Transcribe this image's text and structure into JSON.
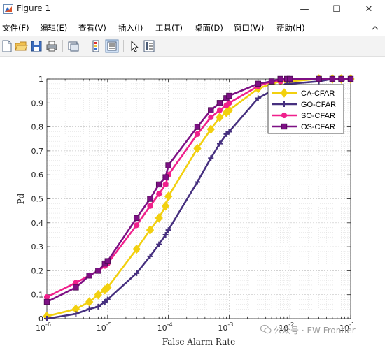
{
  "window": {
    "title": "Figure 1",
    "minimize_glyph": "—",
    "maximize_glyph": "☐",
    "close_glyph": "✕"
  },
  "menu": [
    "文件(F)",
    "编辑(E)",
    "查看(V)",
    "插入(I)",
    "工具(T)",
    "桌面(D)",
    "窗口(W)",
    "帮助(H)"
  ],
  "watermark": "公众号 · EW Frontier",
  "chart_data": {
    "type": "line",
    "xscale": "log",
    "xlim": [
      1e-06,
      0.1
    ],
    "ylim": [
      0,
      1
    ],
    "grid": true,
    "minor_grid": true,
    "xlabel": "False Alarm Rate",
    "ylabel": "Pd",
    "x_tick_labels": [
      "10^-6",
      "10^-5",
      "10^-4",
      "10^-3",
      "10^-2",
      "10^-1"
    ],
    "y_tick_labels": [
      "0",
      "0.1",
      "0.2",
      "0.3",
      "0.4",
      "0.5",
      "0.6",
      "0.7",
      "0.8",
      "0.9",
      "1"
    ],
    "legend_position": "top-right",
    "series": [
      {
        "name": "CA-CFAR",
        "color": "#f2d00f",
        "marker": "diamond",
        "x": [
          1e-06,
          3e-06,
          5e-06,
          7e-06,
          9e-06,
          1e-05,
          3e-05,
          5e-05,
          7e-05,
          9e-05,
          0.0001,
          0.0003,
          0.0005,
          0.0007,
          0.0009,
          0.001,
          0.003,
          0.005,
          0.007,
          0.009,
          0.01,
          0.03,
          0.05,
          0.07,
          0.1
        ],
        "y": [
          0.01,
          0.04,
          0.07,
          0.1,
          0.12,
          0.13,
          0.29,
          0.37,
          0.42,
          0.47,
          0.51,
          0.71,
          0.79,
          0.84,
          0.86,
          0.87,
          0.96,
          0.98,
          0.99,
          0.99,
          0.99,
          1.0,
          1.0,
          1.0,
          1.0
        ]
      },
      {
        "name": "GO-CFAR",
        "color": "#46307f",
        "marker": "plus",
        "x": [
          1e-06,
          3e-06,
          5e-06,
          7e-06,
          9e-06,
          1e-05,
          3e-05,
          5e-05,
          7e-05,
          9e-05,
          0.0001,
          0.0003,
          0.0005,
          0.0007,
          0.0009,
          0.001,
          0.003,
          0.005,
          0.007,
          0.009,
          0.01,
          0.03,
          0.05,
          0.07,
          0.1
        ],
        "y": [
          0.0,
          0.02,
          0.04,
          0.05,
          0.07,
          0.08,
          0.19,
          0.26,
          0.31,
          0.35,
          0.37,
          0.57,
          0.67,
          0.73,
          0.77,
          0.78,
          0.92,
          0.95,
          0.97,
          0.98,
          0.98,
          0.99,
          1.0,
          1.0,
          1.0
        ]
      },
      {
        "name": "SO-CFAR",
        "color": "#f0208c",
        "marker": "circle",
        "x": [
          1e-06,
          3e-06,
          5e-06,
          7e-06,
          9e-06,
          1e-05,
          3e-05,
          5e-05,
          7e-05,
          9e-05,
          0.0001,
          0.0003,
          0.0005,
          0.0007,
          0.0009,
          0.001,
          0.003,
          0.005,
          0.007,
          0.009,
          0.01,
          0.03,
          0.05,
          0.07,
          0.1
        ],
        "y": [
          0.09,
          0.15,
          0.18,
          0.2,
          0.22,
          0.23,
          0.39,
          0.47,
          0.52,
          0.56,
          0.6,
          0.77,
          0.84,
          0.87,
          0.89,
          0.9,
          0.97,
          0.99,
          0.99,
          1.0,
          1.0,
          1.0,
          1.0,
          1.0,
          1.0
        ]
      },
      {
        "name": "OS-CFAR",
        "color": "#7d1084",
        "marker": "square",
        "x": [
          1e-06,
          3e-06,
          5e-06,
          7e-06,
          9e-06,
          1e-05,
          3e-05,
          5e-05,
          7e-05,
          9e-05,
          0.0001,
          0.0003,
          0.0005,
          0.0007,
          0.0009,
          0.001,
          0.003,
          0.005,
          0.007,
          0.009,
          0.01,
          0.03,
          0.05,
          0.07,
          0.1
        ],
        "y": [
          0.07,
          0.13,
          0.18,
          0.2,
          0.23,
          0.24,
          0.42,
          0.5,
          0.56,
          0.59,
          0.64,
          0.8,
          0.87,
          0.9,
          0.92,
          0.93,
          0.98,
          0.99,
          1.0,
          1.0,
          1.0,
          1.0,
          1.0,
          1.0,
          1.0
        ]
      }
    ]
  }
}
